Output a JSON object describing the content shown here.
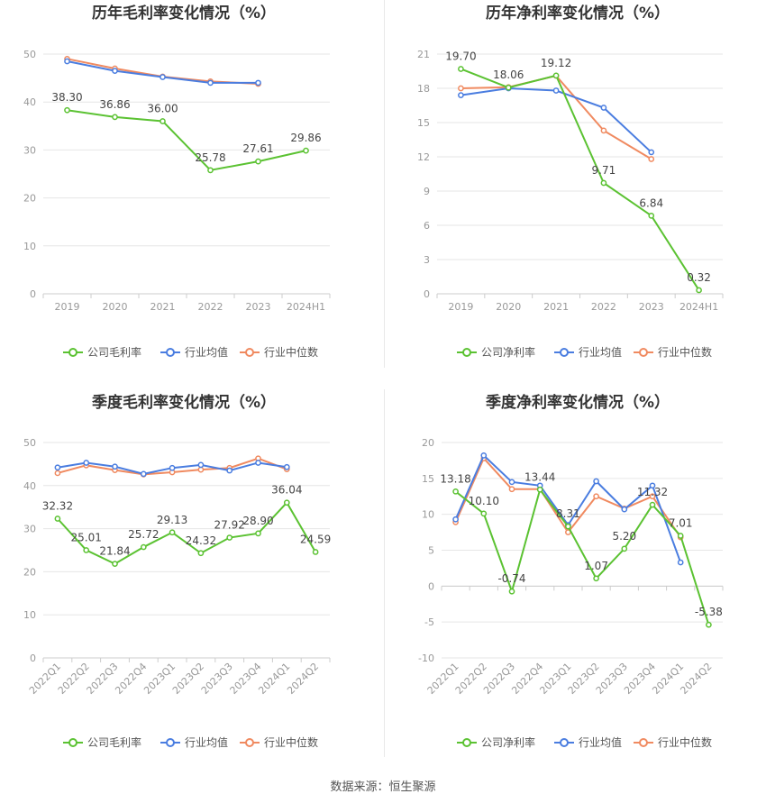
{
  "source": "数据来源：恒生聚源",
  "colors": {
    "company": "#5bc232",
    "industry_avg": "#4a7de0",
    "industry_median": "#f08a60",
    "grid": "#e6e6e6",
    "axis_text": "#999999",
    "label": "#444444",
    "title": "#333333"
  },
  "chart_data": [
    {
      "type": "line",
      "title": "历年毛利率变化情况（%）",
      "categories": [
        "2019",
        "2020",
        "2021",
        "2022",
        "2023",
        "2024H1"
      ],
      "ylim": [
        0,
        50
      ],
      "yticks": [
        0,
        10,
        20,
        30,
        40,
        50
      ],
      "series": [
        {
          "name": "公司毛利率",
          "role": "company",
          "values": [
            38.3,
            36.86,
            36.0,
            25.78,
            27.61,
            29.86
          ],
          "labels": [
            "38.30",
            "36.86",
            "36.00",
            "25.78",
            "27.61",
            "29.86"
          ]
        },
        {
          "name": "行业均值",
          "role": "industry_avg",
          "values": [
            48.5,
            46.5,
            45.2,
            44.0,
            44.0,
            null
          ]
        },
        {
          "name": "行业中位数",
          "role": "industry_median",
          "values": [
            49.0,
            47.0,
            45.3,
            44.3,
            43.8,
            null
          ]
        }
      ],
      "grid": true,
      "legend": "bottom"
    },
    {
      "type": "line",
      "title": "历年净利率变化情况（%）",
      "categories": [
        "2019",
        "2020",
        "2021",
        "2022",
        "2023",
        "2024H1"
      ],
      "ylim": [
        0,
        21
      ],
      "yticks": [
        0,
        3,
        6,
        9,
        12,
        15,
        18,
        21
      ],
      "series": [
        {
          "name": "公司净利率",
          "role": "company",
          "values": [
            19.7,
            18.06,
            19.12,
            9.71,
            6.84,
            0.32
          ],
          "labels": [
            "19.70",
            "18.06",
            "19.12",
            "9.71",
            "6.84",
            "0.32"
          ]
        },
        {
          "name": "行业均值",
          "role": "industry_avg",
          "values": [
            17.4,
            18.0,
            17.8,
            16.3,
            12.4,
            null
          ]
        },
        {
          "name": "行业中位数",
          "role": "industry_median",
          "values": [
            18.0,
            18.1,
            19.1,
            14.3,
            11.8,
            null
          ]
        }
      ],
      "grid": true,
      "legend": "bottom"
    },
    {
      "type": "line",
      "title": "季度毛利率变化情况（%）",
      "categories": [
        "2022Q1",
        "2022Q2",
        "2022Q3",
        "2022Q4",
        "2023Q1",
        "2023Q2",
        "2023Q3",
        "2023Q4",
        "2024Q1",
        "2024Q2"
      ],
      "ylim": [
        0,
        50
      ],
      "yticks": [
        0,
        10,
        20,
        30,
        40,
        50
      ],
      "series": [
        {
          "name": "公司毛利率",
          "role": "company",
          "values": [
            32.32,
            25.01,
            21.84,
            25.72,
            29.13,
            24.32,
            27.92,
            28.9,
            36.04,
            24.59
          ],
          "labels": [
            "32.32",
            "25.01",
            "21.84",
            "25.72",
            "29.13",
            "24.32",
            "27.92",
            "28.90",
            "36.04",
            "24.59"
          ]
        },
        {
          "name": "行业均值",
          "role": "industry_avg",
          "values": [
            44.2,
            45.3,
            44.4,
            42.7,
            44.1,
            44.8,
            43.5,
            45.3,
            44.3,
            null
          ]
        },
        {
          "name": "行业中位数",
          "role": "industry_median",
          "values": [
            42.9,
            44.7,
            43.6,
            42.6,
            43.1,
            43.7,
            44.1,
            46.3,
            43.8,
            null
          ]
        }
      ],
      "grid": true,
      "legend": "bottom"
    },
    {
      "type": "line",
      "title": "季度净利率变化情况（%）",
      "categories": [
        "2022Q1",
        "2022Q2",
        "2022Q3",
        "2022Q4",
        "2023Q1",
        "2023Q2",
        "2023Q3",
        "2023Q4",
        "2024Q1",
        "2024Q2"
      ],
      "ylim": [
        -10,
        20
      ],
      "yticks": [
        -10,
        -5,
        0,
        5,
        10,
        15,
        20
      ],
      "series": [
        {
          "name": "公司净利率",
          "role": "company",
          "values": [
            13.18,
            10.1,
            -0.74,
            13.44,
            8.31,
            1.07,
            5.2,
            11.32,
            7.01,
            -5.38
          ],
          "labels": [
            "13.18",
            "10.10",
            "-0.74",
            "13.44",
            "8.31",
            "1.07",
            "5.20",
            "11.32",
            "7.01",
            "-5.38"
          ]
        },
        {
          "name": "行业均值",
          "role": "industry_avg",
          "values": [
            9.3,
            18.2,
            14.5,
            14.0,
            8.5,
            14.6,
            10.7,
            14.0,
            3.3,
            null
          ]
        },
        {
          "name": "行业中位数",
          "role": "industry_median",
          "values": [
            8.9,
            17.8,
            13.5,
            13.5,
            7.5,
            12.5,
            10.8,
            12.5,
            6.8,
            null
          ]
        }
      ],
      "grid": true,
      "legend": "bottom"
    }
  ]
}
